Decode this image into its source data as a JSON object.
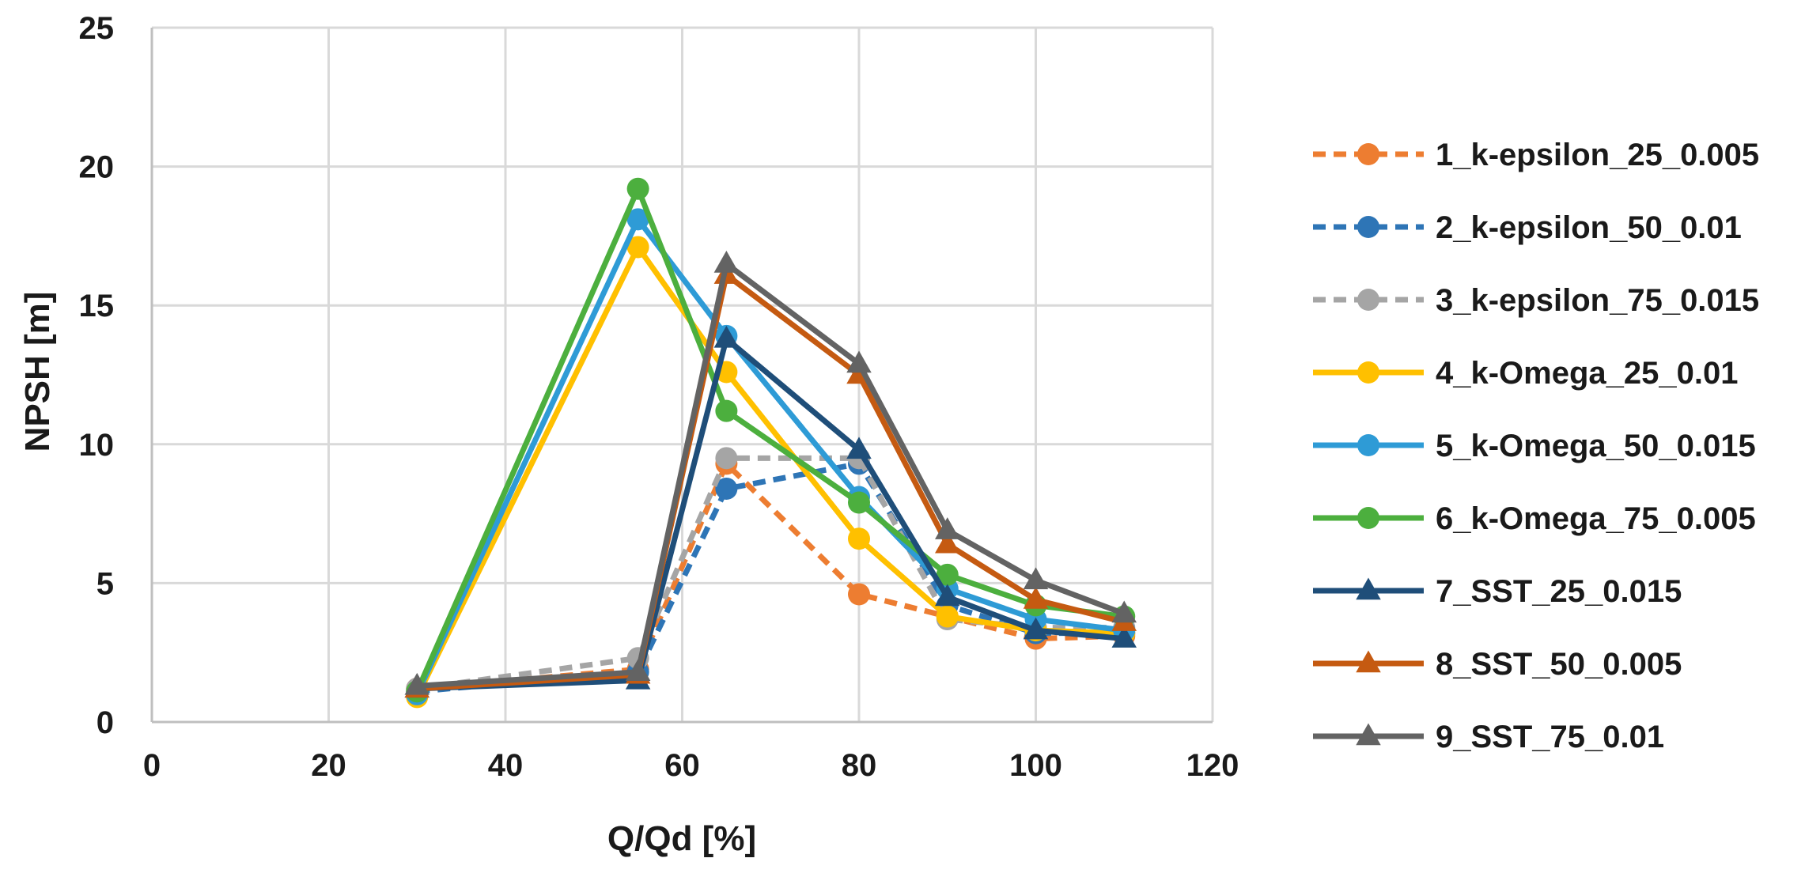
{
  "chart_data": {
    "type": "line",
    "xlabel": "Q/Qd [%]",
    "ylabel": "NPSH [m]",
    "xlim": [
      0,
      120
    ],
    "ylim": [
      0,
      25
    ],
    "x_ticks": [
      0,
      20,
      40,
      60,
      80,
      100,
      120
    ],
    "y_ticks": [
      0,
      5,
      10,
      15,
      20,
      25
    ],
    "grid": true,
    "legend_position": "right",
    "x": [
      30,
      55,
      65,
      80,
      90,
      100,
      110
    ],
    "series": [
      {
        "name": "1_k-epsilon_25_0.005",
        "values": [
          1.2,
          1.9,
          9.3,
          4.6,
          3.8,
          3.0,
          3.1
        ],
        "color": "#ED7D31",
        "dash": true,
        "marker": "circle"
      },
      {
        "name": "2_k-epsilon_50_0.01",
        "values": [
          1.1,
          1.8,
          8.4,
          9.3,
          4.2,
          3.2,
          3.2
        ],
        "color": "#2E75B6",
        "dash": true,
        "marker": "circle"
      },
      {
        "name": "3_k-epsilon_75_0.015",
        "values": [
          1.2,
          2.3,
          9.5,
          9.5,
          3.7,
          3.4,
          3.4
        ],
        "color": "#A5A5A5",
        "dash": true,
        "marker": "circle"
      },
      {
        "name": "4_k-Omega_25_0.01",
        "values": [
          0.9,
          17.1,
          12.6,
          6.6,
          3.8,
          3.3,
          3.2
        ],
        "color": "#FFC000",
        "dash": false,
        "marker": "circle"
      },
      {
        "name": "5_k-Omega_50_0.015",
        "values": [
          1.0,
          18.1,
          13.9,
          8.1,
          4.8,
          3.7,
          3.3
        ],
        "color": "#2E9BD6",
        "dash": false,
        "marker": "circle"
      },
      {
        "name": "6_k-Omega_75_0.005",
        "values": [
          1.1,
          19.2,
          11.2,
          7.9,
          5.3,
          4.2,
          3.8
        ],
        "color": "#4CAF3E",
        "dash": false,
        "marker": "circle"
      },
      {
        "name": "7_SST_25_0.015",
        "values": [
          1.2,
          1.5,
          13.8,
          9.8,
          4.5,
          3.3,
          3.0
        ],
        "color": "#1F4E79",
        "dash": false,
        "marker": "triangle"
      },
      {
        "name": "8_SST_50_0.005",
        "values": [
          1.2,
          1.7,
          16.1,
          12.5,
          6.4,
          4.4,
          3.6
        ],
        "color": "#C55A11",
        "dash": false,
        "marker": "triangle"
      },
      {
        "name": "9_SST_75_0.01",
        "values": [
          1.3,
          1.8,
          16.5,
          12.9,
          6.9,
          5.1,
          3.9
        ],
        "color": "#636363",
        "dash": false,
        "marker": "triangle"
      }
    ]
  }
}
